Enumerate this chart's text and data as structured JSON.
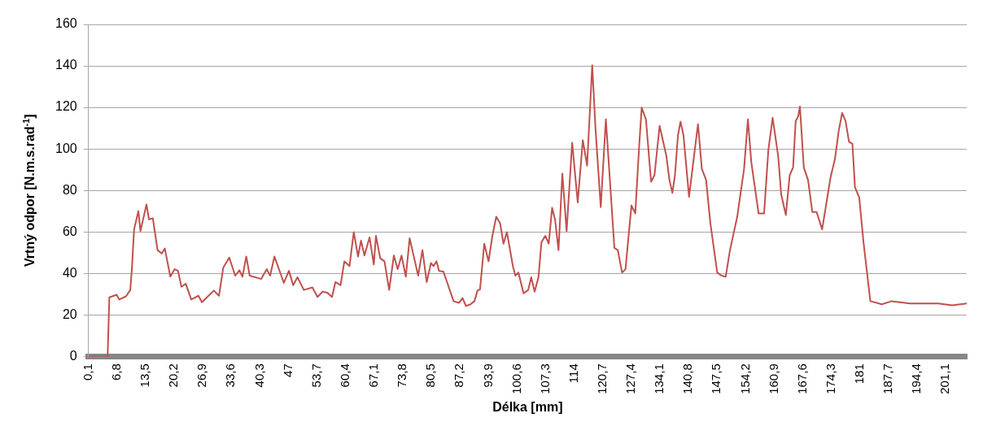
{
  "chart_data": {
    "type": "line",
    "xlabel": "Délka [mm]",
    "ylabel": "Vrtný odpor [N.m.s.rad$^{-1}$]",
    "xlim": [
      0.1,
      206
    ],
    "ylim": [
      0,
      160
    ],
    "yticks": [
      0,
      20,
      40,
      60,
      80,
      100,
      120,
      140,
      160
    ],
    "xticks": [
      {
        "value": 0.1,
        "label": "0,1"
      },
      {
        "value": 6.8,
        "label": "6,8"
      },
      {
        "value": 13.5,
        "label": "13,5"
      },
      {
        "value": 20.2,
        "label": "20,2"
      },
      {
        "value": 26.9,
        "label": "26,9"
      },
      {
        "value": 33.6,
        "label": "33,6"
      },
      {
        "value": 40.3,
        "label": "40,3"
      },
      47,
      {
        "value": 53.7,
        "label": "53,7"
      },
      {
        "value": 60.4,
        "label": "60,4"
      },
      {
        "value": 67.1,
        "label": "67,1"
      },
      {
        "value": 73.8,
        "label": "73,8"
      },
      {
        "value": 80.5,
        "label": "80,5"
      },
      {
        "value": 87.2,
        "label": "87,2"
      },
      {
        "value": 93.9,
        "label": "93,9"
      },
      {
        "value": 100.6,
        "label": "100,6"
      },
      {
        "value": 107.3,
        "label": "107,3"
      },
      114,
      {
        "value": 120.7,
        "label": "120,7"
      },
      {
        "value": 127.4,
        "label": "127,4"
      },
      {
        "value": 134.1,
        "label": "134,1"
      },
      {
        "value": 140.8,
        "label": "140,8"
      },
      {
        "value": 147.5,
        "label": "147,5"
      },
      {
        "value": 154.2,
        "label": "154,2"
      },
      {
        "value": 160.9,
        "label": "160,9"
      },
      {
        "value": 167.6,
        "label": "167,6"
      },
      {
        "value": 174.3,
        "label": "174,3"
      },
      181,
      {
        "value": 187.7,
        "label": "187,7"
      },
      {
        "value": 194.4,
        "label": "194,4"
      },
      {
        "value": 201.1,
        "label": "201,1"
      }
    ],
    "grid": "y",
    "legend": false,
    "marker": "none",
    "line_style": "solid",
    "series": [
      {
        "color": "#c0504d",
        "x": [
          0.1,
          4.6,
          5.0,
          6.7,
          7.3,
          8.9,
          9.9,
          10.3,
          10.8,
          11.8,
          12.3,
          13.7,
          14.3,
          15.2,
          16.3,
          17.3,
          18,
          19.3,
          20.3,
          21.1,
          21.9,
          22.9,
          24.2,
          25.9,
          26.7,
          28.5,
          29.5,
          30.7,
          31.7,
          33.1,
          34.5,
          35.5,
          36.2,
          37.1,
          37.9,
          40.6,
          41.9,
          42.7,
          43.7,
          45.3,
          45.9,
          47.1,
          48.1,
          49.1,
          50.6,
          52.6,
          53.8,
          55,
          56.1,
          57.2,
          58,
          59.2,
          60.1,
          61.3,
          62.3,
          63.3,
          64,
          64.8,
          66,
          67,
          67.5,
          68.5,
          69.5,
          70.6,
          71.7,
          72.6,
          73.5,
          74.5,
          75.4,
          77.4,
          78.4,
          79.4,
          80.4,
          81,
          81.7,
          82.3,
          83.3,
          84.3,
          85.7,
          87,
          87.8,
          88.6,
          89.6,
          90.6,
          91.3,
          91.9,
          92.9,
          93.9,
          94.8,
          95.7,
          96.6,
          97.4,
          98.2,
          99.6,
          100.2,
          100.9,
          102.1,
          103.2,
          103.9,
          104.7,
          105.6,
          106.3,
          107.2,
          108,
          108.8,
          109.5,
          110.3,
          111.2,
          112.2,
          113.5,
          114.8,
          116,
          117,
          118.2,
          119,
          120.2,
          121.4,
          123.4,
          124.2,
          125.2,
          126,
          127.4,
          128.3,
          129.2,
          129.8,
          130.8,
          132,
          132.8,
          134,
          135.6,
          136.3,
          137,
          137.6,
          138.3,
          138.9,
          139.6,
          140.9,
          142.3,
          143,
          143.9,
          144.9,
          145.9,
          147.5,
          148.5,
          149.5,
          150.5,
          152.2,
          153.8,
          154.7,
          155.5,
          157.2,
          158.5,
          159.5,
          160.5,
          161.8,
          162.5,
          163.6,
          164.5,
          165.3,
          165.9,
          166.5,
          166.9,
          167.8,
          168.8,
          169.8,
          170.8,
          172.1,
          174.1,
          175.1,
          176,
          176.8,
          177.6,
          178.4,
          179.2,
          179.8,
          180.8,
          181.8,
          183.4,
          186.1,
          188.4,
          192.7,
          199.3,
          202.6,
          206
        ],
        "values": [
          0,
          0,
          28.4,
          29.7,
          27.4,
          28.9,
          32,
          42.7,
          61.2,
          70,
          60.4,
          73.2,
          66,
          66.5,
          51.2,
          49.6,
          52,
          38.4,
          42,
          41.2,
          33.5,
          35,
          27.4,
          29.2,
          26.1,
          29.7,
          31.7,
          29.2,
          42.7,
          47.6,
          38.9,
          41.5,
          38.4,
          48.1,
          38.9,
          37.3,
          42,
          38.9,
          48.1,
          38.9,
          35.4,
          41.2,
          34.3,
          38.1,
          32,
          33.2,
          28.6,
          31.2,
          30.7,
          28.6,
          35.8,
          34.3,
          45.8,
          43.5,
          59.9,
          48.1,
          55.8,
          48.6,
          57.3,
          44.3,
          58.1,
          47.3,
          45.8,
          32,
          48.6,
          42,
          48.6,
          38.4,
          56.9,
          38.9,
          51.2,
          35.8,
          45,
          43.5,
          45.8,
          41.2,
          40.9,
          35,
          26.6,
          25.8,
          28.1,
          24.3,
          25,
          26.6,
          31.7,
          32.3,
          54.3,
          45.8,
          58.1,
          67.3,
          64.2,
          54.3,
          59.9,
          43.5,
          38.9,
          40.4,
          30.4,
          32,
          38.1,
          31.2,
          38.1,
          55,
          58.1,
          54.3,
          71.6,
          65.8,
          51.2,
          88.1,
          60.4,
          103,
          74.2,
          104.2,
          91.9,
          140.3,
          108.8,
          71.9,
          114.2,
          52.3,
          51.2,
          40.4,
          42,
          72.7,
          68.9,
          101.1,
          119.9,
          114.2,
          84.2,
          87.3,
          111.1,
          96.5,
          85,
          78.8,
          87.3,
          106.5,
          113.1,
          106.5,
          76.9,
          100.4,
          111.9,
          90.4,
          85,
          64.2,
          40.4,
          38.9,
          38.4,
          51.2,
          67.3,
          90.4,
          114.2,
          93.5,
          68.9,
          68.9,
          99.6,
          115,
          96.5,
          78.1,
          68.1,
          87.3,
          91.1,
          113.4,
          115.7,
          120.4,
          91.1,
          85,
          69.6,
          69.6,
          61.2,
          86.5,
          95,
          108.8,
          117.3,
          113.4,
          103.4,
          102.4,
          81.5,
          76.6,
          55,
          26.6,
          25.1,
          26.6,
          25.5,
          25.5,
          24.6,
          25.5
        ]
      }
    ]
  }
}
